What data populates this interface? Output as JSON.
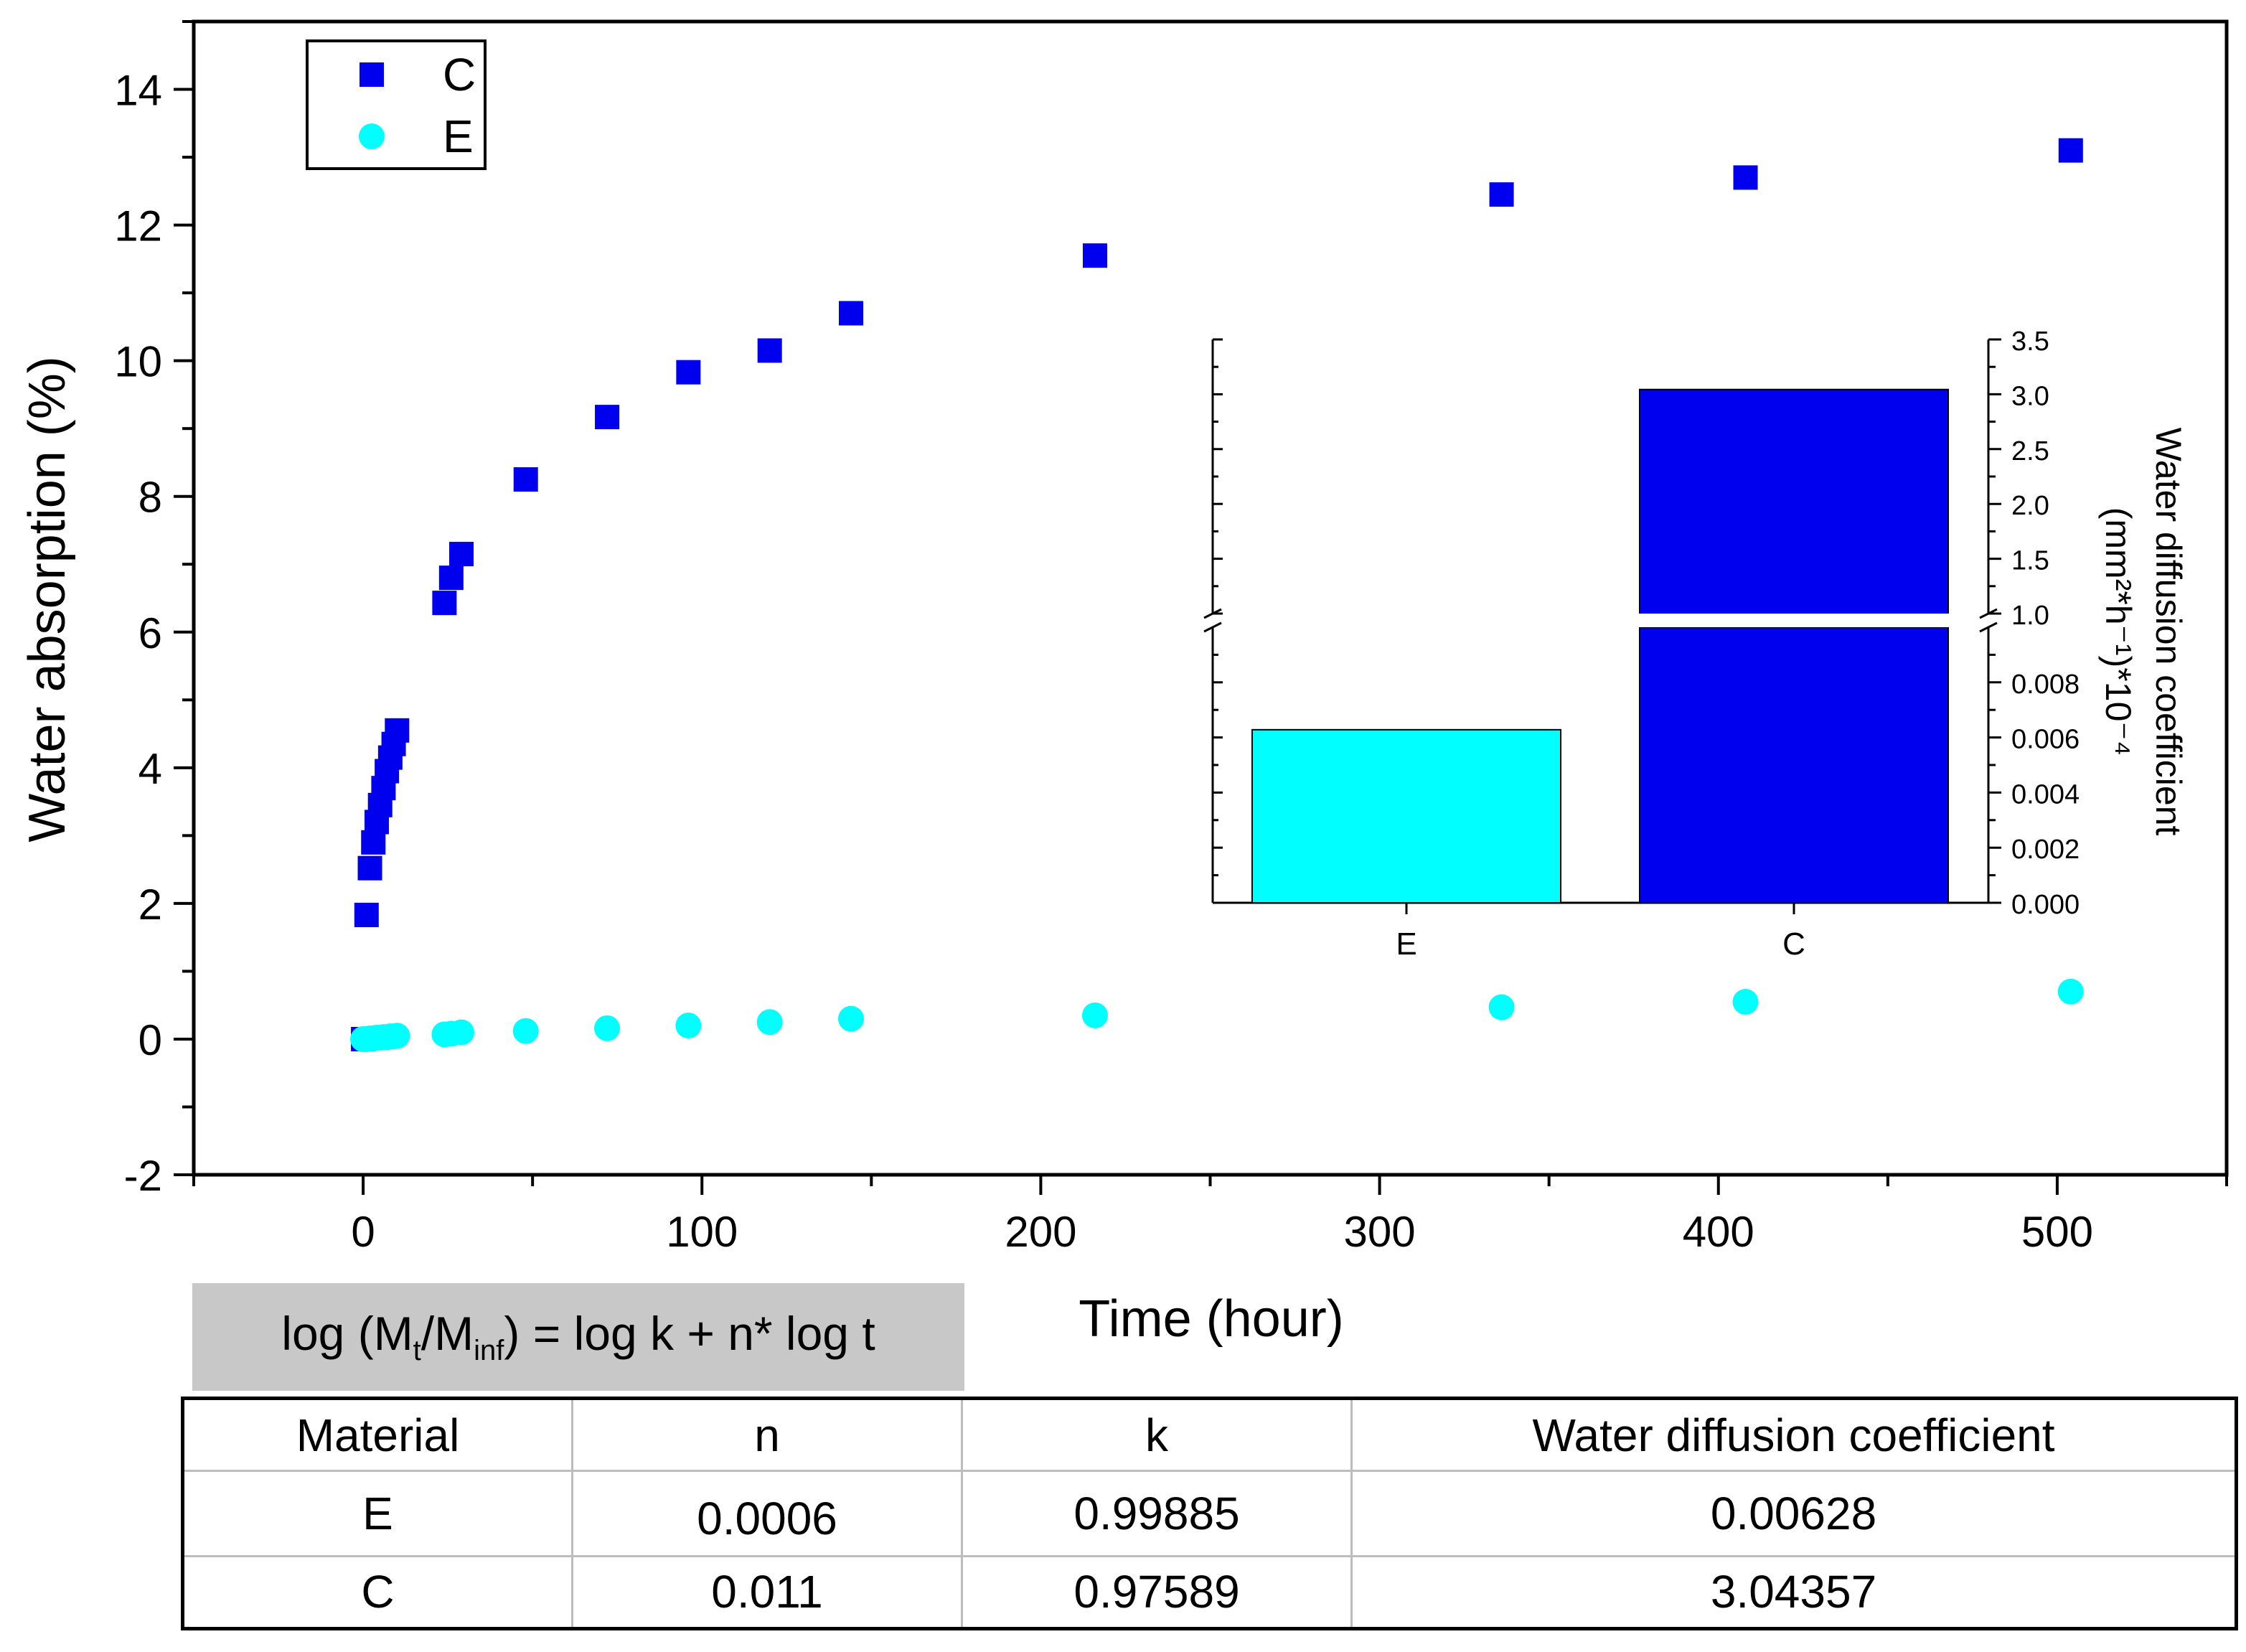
{
  "chart_data": [
    {
      "type": "scatter",
      "xlabel": "Time (hour)",
      "ylabel": "Water absorption (%)",
      "xlim": [
        -50,
        550
      ],
      "ylim": [
        -2,
        15
      ],
      "xticks": [
        0,
        100,
        200,
        300,
        400,
        500
      ],
      "yticks": [
        -2,
        0,
        2,
        4,
        6,
        8,
        10,
        12,
        14
      ],
      "legend_position": "top-left",
      "series": [
        {
          "name": "C",
          "marker": "square",
          "color": "#0000ee",
          "x": [
            0,
            1,
            2,
            3,
            4,
            5,
            6,
            7,
            8,
            9,
            10,
            24,
            26,
            29,
            48,
            72,
            96,
            120,
            144,
            216,
            336,
            408,
            504
          ],
          "y": [
            0,
            1.83,
            2.52,
            2.9,
            3.2,
            3.45,
            3.7,
            3.95,
            4.15,
            4.35,
            4.55,
            6.43,
            6.8,
            7.15,
            8.25,
            9.17,
            9.83,
            10.15,
            10.7,
            11.55,
            12.45,
            12.7,
            13.1
          ]
        },
        {
          "name": "E",
          "marker": "circle",
          "color": "#00ffff",
          "x": [
            0,
            1,
            2,
            3,
            4,
            5,
            6,
            7,
            8,
            9,
            10,
            24,
            26,
            29,
            48,
            72,
            96,
            120,
            144,
            216,
            336,
            408,
            504
          ],
          "y": [
            0,
            0.0,
            0.01,
            0.01,
            0.02,
            0.02,
            0.03,
            0.03,
            0.04,
            0.04,
            0.05,
            0.07,
            0.08,
            0.1,
            0.12,
            0.16,
            0.2,
            0.25,
            0.3,
            0.35,
            0.47,
            0.55,
            0.7
          ]
        }
      ]
    },
    {
      "type": "bar",
      "ylabel_line1": "Water diffusion coefficient",
      "ylabel_line2": "(mm²*h⁻¹)*10⁻⁴",
      "categories": [
        "E",
        "C"
      ],
      "values": [
        0.00628,
        3.04357
      ],
      "colors": [
        "#00ffff",
        "#0000ee"
      ],
      "broken_axis": true,
      "lower_range": [
        0,
        0.01
      ],
      "upper_range": [
        1.0,
        3.5
      ],
      "lower_ticks": [
        "0.000",
        "0.002",
        "0.004",
        "0.006",
        "0.008"
      ],
      "upper_ticks": [
        "1.0",
        "1.5",
        "2.0",
        "2.5",
        "3.0",
        "3.5"
      ],
      "axis_side": "right"
    }
  ],
  "formula": {
    "prefix": "log (M",
    "sub1": "t",
    "slash": "/M",
    "sub2": "inf",
    "suffix": ") = log k + n* log t"
  },
  "table": {
    "headers": [
      "Material",
      "n",
      "k",
      "Water diffusion coefficient"
    ],
    "rows": [
      [
        "E",
        "0.0006",
        "0.99885",
        "0.00628"
      ],
      [
        "C",
        "0.011",
        "0.97589",
        "3.04357"
      ]
    ]
  }
}
